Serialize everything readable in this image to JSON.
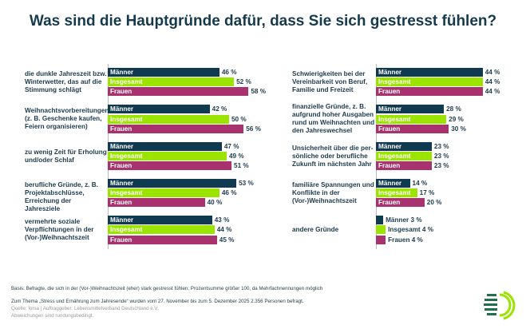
{
  "chart_data": {
    "type": "bar",
    "orientation": "horizontal",
    "title": "Was sind die Hauptgründe dafür, dass Sie sich gestresst fühlen?",
    "unit": "%",
    "series_names": [
      "Männer",
      "Insgesamt",
      "Frauen"
    ],
    "colors": {
      "Männer": "#0f3a4f",
      "Insgesamt": "#9be400",
      "Frauen": "#a8326e"
    },
    "panels": [
      {
        "categories": [
          {
            "label": "die dunkle Jahreszeit bzw. Winterwetter, das auf die Stimmung schlägt",
            "values": [
              46,
              52,
              58
            ]
          },
          {
            "label": "Weihnachtsvorbereitungen (z. B. Geschenke kaufen, Feiern organisieren)",
            "values": [
              42,
              50,
              56
            ]
          },
          {
            "label": "zu wenig Zeit für Erholung und/oder Schlaf",
            "values": [
              47,
              49,
              51
            ]
          },
          {
            "label": "berufliche Gründe, z. B. Projektabschlüsse, Erreichung der Jahresziele",
            "values": [
              53,
              46,
              40
            ]
          },
          {
            "label": "vermehrte soziale Verpflichtungen in der (Vor-)Weihnachtszeit",
            "values": [
              43,
              44,
              45
            ]
          }
        ]
      },
      {
        "categories": [
          {
            "label": "Schwierigkeiten bei der Vereinbarkeit von Beruf, Familie und Freizeit",
            "values": [
              44,
              44,
              44
            ]
          },
          {
            "label": "finanzielle Gründe, z. B. aufgrund hoher Ausgaben rund um Weihnachten und den Jahreswechsel",
            "values": [
              28,
              29,
              30
            ]
          },
          {
            "label": "Unsicherheit über die per-sönliche oder berufliche Zukunft im nächsten Jahr",
            "values": [
              23,
              23,
              23
            ]
          },
          {
            "label": "familiäre Spannungen und Konflikte in der (Vor-)Weihnachtszeit",
            "values": [
              14,
              17,
              20
            ]
          },
          {
            "label": "andere Gründe",
            "values": [
              3,
              4,
              4
            ]
          }
        ]
      }
    ]
  },
  "footer": {
    "basis": "Basis: Befragte, die sich in der (Vor-)Weihnachtszeit (eher) stark gestresst fühlen; Prozentsumme größer 100, da Mehrfachnennungen möglich",
    "survey": "Zum Thema „Stress und Ernährung zum Jahresende“ wurden vom 27. November bis zum 5. Dezember 2025 2.356 Personen befragt.",
    "source": "Quelle: forsa | Auftraggeber: Lebensmittelverband Deutschland e.V.",
    "rounding": "Abweichungen sind rundungsbedingt."
  }
}
